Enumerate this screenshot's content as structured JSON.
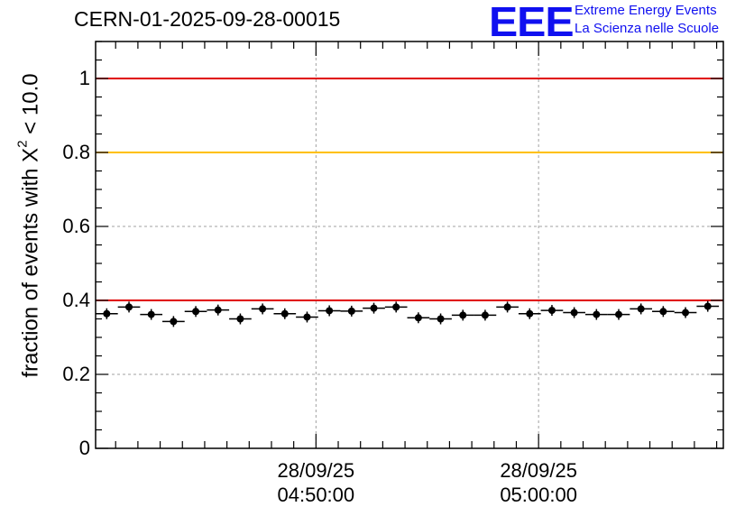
{
  "title": "CERN-01-2025-09-28-00015",
  "logo": {
    "mark": "EEE",
    "line1": "Extreme Energy Events",
    "line2": "La Scienza nelle Scuole"
  },
  "chart_data": {
    "type": "scatter",
    "title": "CERN-01-2025-09-28-00015",
    "ylabel_prefix": "fraction of events with X",
    "ylabel_sup": "2",
    "ylabel_suffix": " < 10.0",
    "xlabel": "",
    "ylim": [
      0,
      1.1
    ],
    "yticks": [
      {
        "value": 0,
        "label": "0"
      },
      {
        "value": 0.2,
        "label": "0.2"
      },
      {
        "value": 0.4,
        "label": "0.4"
      },
      {
        "value": 0.6,
        "label": "0.6"
      },
      {
        "value": 0.8,
        "label": "0.8"
      },
      {
        "value": 1,
        "label": "1"
      }
    ],
    "xlim_minutes": [
      37.1,
      65.3
    ],
    "xticks": [
      {
        "minute": 47.0,
        "date": "28/09/25",
        "time": "04:50:00"
      },
      {
        "minute": 57.0,
        "date": "28/09/25",
        "time": "05:00:00"
      }
    ],
    "reference_lines": [
      {
        "value": 1.0,
        "color": "#e00000"
      },
      {
        "value": 0.8,
        "color": "#ffc000"
      },
      {
        "value": 0.4,
        "color": "#e00000"
      }
    ],
    "bin_width_minutes": 1.0,
    "series": [
      {
        "name": "fraction",
        "x_minutes": [
          37.6,
          38.6,
          39.6,
          40.6,
          41.6,
          42.6,
          43.6,
          44.6,
          45.6,
          46.6,
          47.6,
          48.6,
          49.6,
          50.6,
          51.6,
          52.6,
          53.6,
          54.6,
          55.6,
          56.6,
          57.6,
          58.6,
          59.6,
          60.6,
          61.6,
          62.6,
          63.6,
          64.6
        ],
        "values": [
          0.364,
          0.382,
          0.362,
          0.343,
          0.37,
          0.374,
          0.35,
          0.377,
          0.364,
          0.355,
          0.372,
          0.371,
          0.379,
          0.382,
          0.353,
          0.35,
          0.36,
          0.36,
          0.382,
          0.364,
          0.373,
          0.367,
          0.362,
          0.362,
          0.377,
          0.37,
          0.367,
          0.384
        ]
      }
    ],
    "colors": {
      "points": "#000000",
      "grid": "#a0a0a0"
    }
  }
}
